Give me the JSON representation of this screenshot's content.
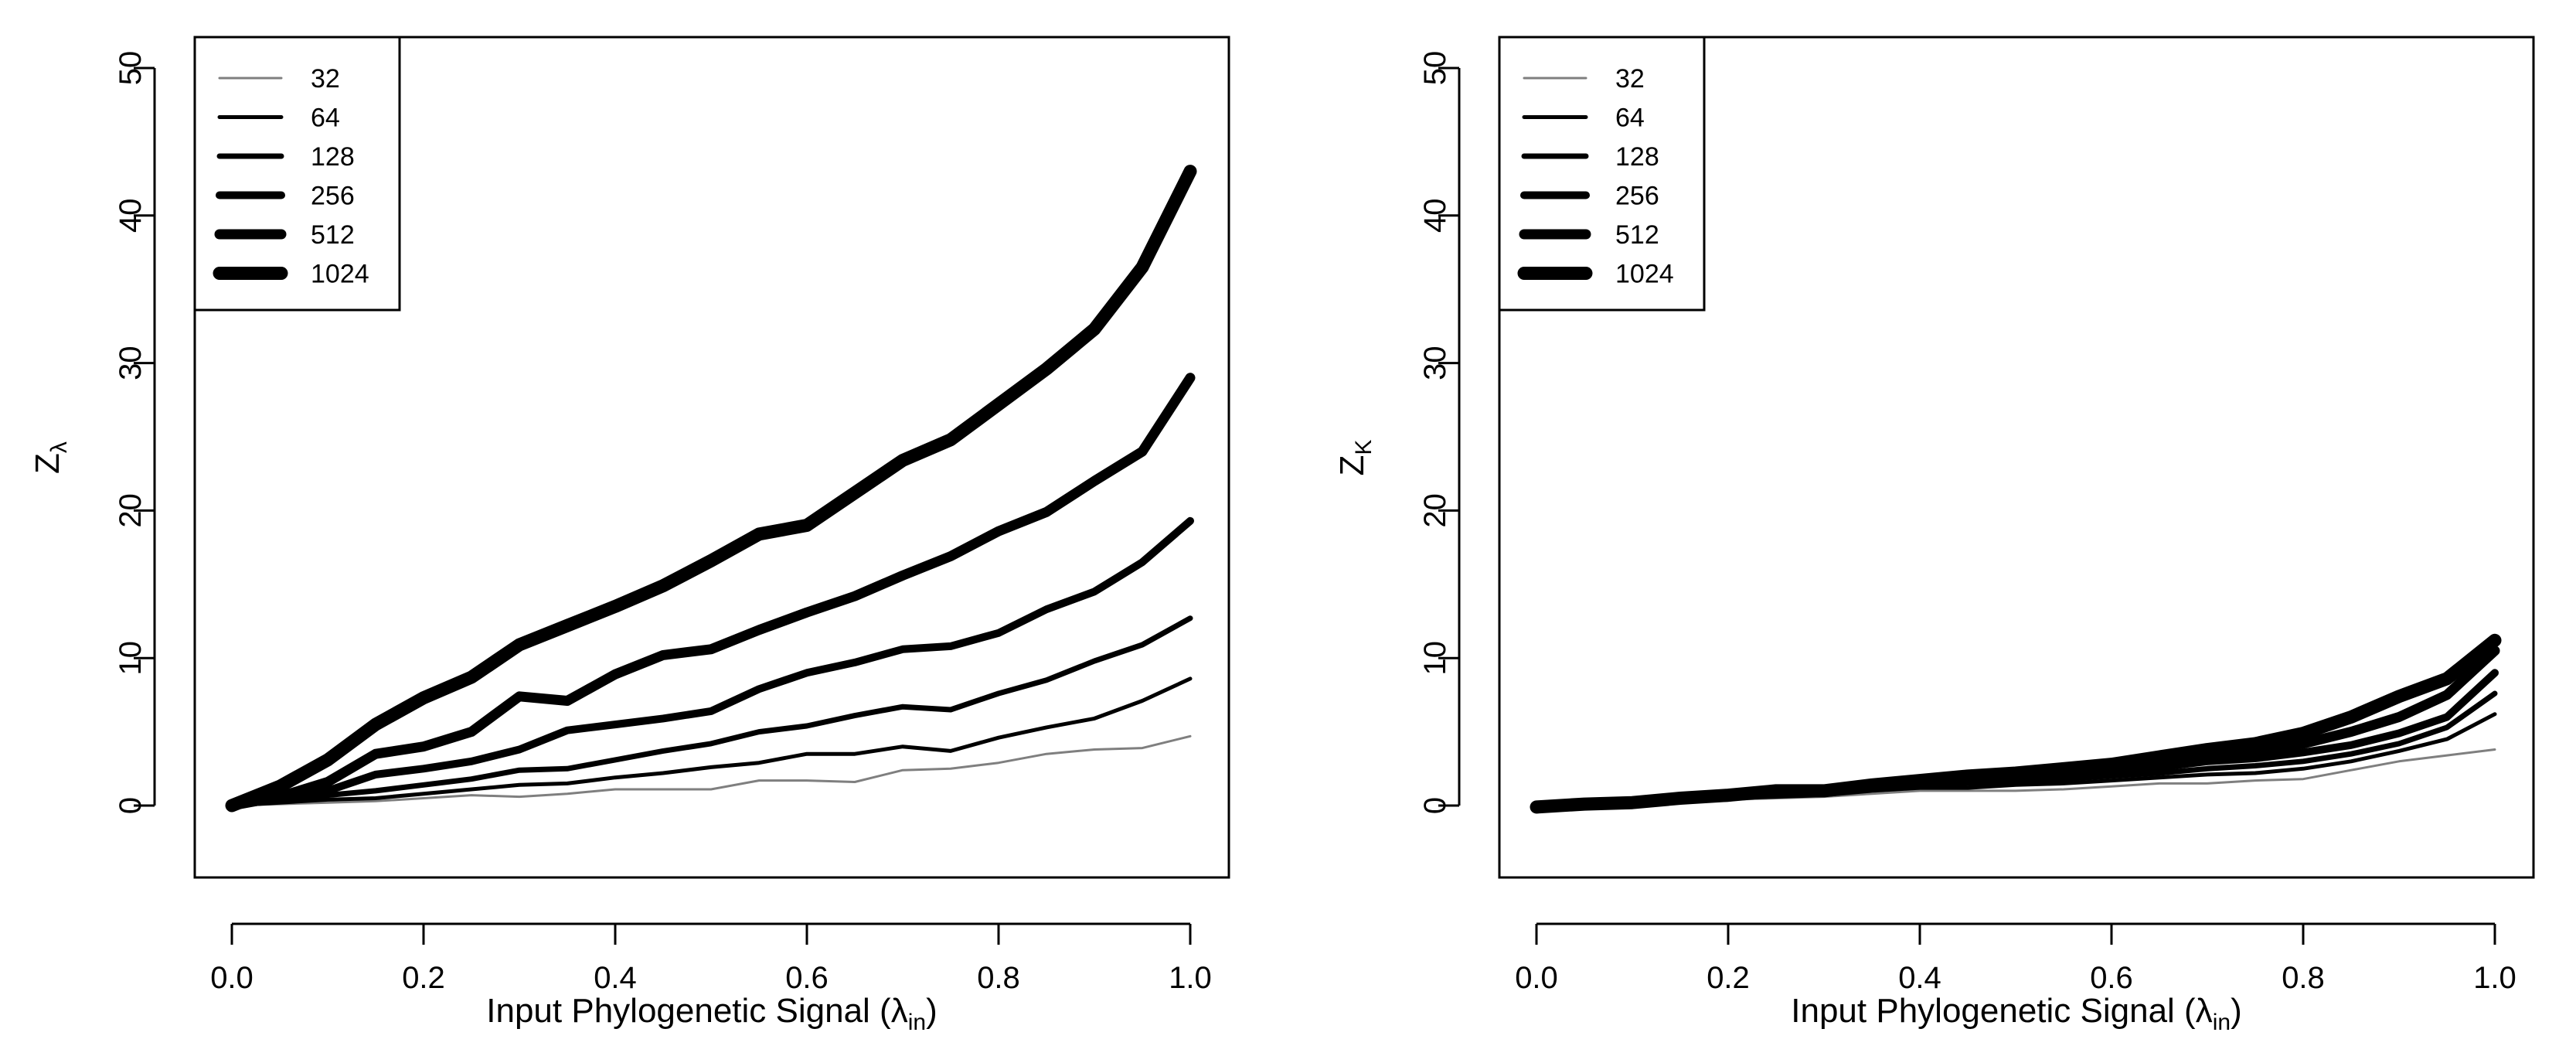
{
  "chart_data": [
    {
      "type": "line",
      "xlabel_main": "Input Phylogenetic Signal (λ",
      "xlabel_sub": "in",
      "xlabel_close": ")",
      "ylabel_main": "Z",
      "ylabel_sub": "λ",
      "xlim": [
        0.0,
        1.0
      ],
      "ylim": [
        -5,
        50
      ],
      "x_ticks": [
        0.0,
        0.2,
        0.4,
        0.6,
        0.8,
        1.0
      ],
      "x_tick_labels": [
        "0.0",
        "0.2",
        "0.4",
        "0.6",
        "0.8",
        "1.0"
      ],
      "y_ticks": [
        0,
        10,
        20,
        30,
        40,
        50
      ],
      "y_tick_labels": [
        "0",
        "10",
        "20",
        "30",
        "40",
        "50"
      ],
      "legend_position": "top-left",
      "grid": false,
      "x": [
        0.0,
        0.05,
        0.1,
        0.15,
        0.2,
        0.25,
        0.3,
        0.35,
        0.4,
        0.45,
        0.5,
        0.55,
        0.6,
        0.65,
        0.7,
        0.75,
        0.8,
        0.85,
        0.9,
        0.95,
        1.0
      ],
      "series": [
        {
          "name": "32",
          "color": "#7f7f7f",
          "values": [
            0.0,
            0.1,
            0.2,
            0.3,
            0.5,
            0.7,
            0.6,
            0.8,
            1.1,
            1.1,
            1.1,
            1.7,
            1.7,
            1.6,
            2.4,
            2.5,
            2.9,
            3.5,
            3.8,
            3.9,
            4.7
          ]
        },
        {
          "name": "64",
          "color": "#000000",
          "values": [
            0.0,
            0.2,
            0.4,
            0.5,
            0.8,
            1.1,
            1.4,
            1.5,
            1.9,
            2.2,
            2.6,
            2.9,
            3.5,
            3.5,
            4.0,
            3.7,
            4.6,
            5.3,
            5.9,
            7.1,
            8.6
          ]
        },
        {
          "name": "128",
          "color": "#000000",
          "values": [
            0.0,
            0.3,
            0.7,
            1.0,
            1.4,
            1.8,
            2.4,
            2.5,
            3.1,
            3.7,
            4.2,
            5.0,
            5.4,
            6.1,
            6.7,
            6.5,
            7.6,
            8.5,
            9.8,
            10.9,
            12.7
          ]
        },
        {
          "name": "256",
          "color": "#000000",
          "values": [
            0.0,
            0.5,
            1.0,
            2.1,
            2.5,
            3.0,
            3.8,
            5.1,
            5.5,
            5.9,
            6.4,
            7.9,
            9.0,
            9.7,
            10.6,
            10.8,
            11.7,
            13.3,
            14.5,
            16.5,
            19.3
          ]
        },
        {
          "name": "512",
          "color": "#000000",
          "values": [
            0.0,
            0.6,
            1.6,
            3.5,
            4.0,
            5.0,
            7.4,
            7.1,
            8.9,
            10.2,
            10.6,
            11.9,
            13.1,
            14.2,
            15.6,
            16.9,
            18.6,
            19.9,
            22.0,
            24.0,
            29.0
          ]
        },
        {
          "name": "1024",
          "color": "#000000",
          "values": [
            0.0,
            1.3,
            3.1,
            5.5,
            7.3,
            8.7,
            10.9,
            12.2,
            13.5,
            14.9,
            16.6,
            18.4,
            19.0,
            21.2,
            23.4,
            24.8,
            27.2,
            29.6,
            32.3,
            36.5,
            43.0
          ]
        }
      ]
    },
    {
      "type": "line",
      "xlabel_main": "Input Phylogenetic Signal (λ",
      "xlabel_sub": "in",
      "xlabel_close": ")",
      "ylabel_main": "Z",
      "ylabel_sub": "K",
      "xlim": [
        0.0,
        1.0
      ],
      "ylim": [
        -5,
        50
      ],
      "x_ticks": [
        0.0,
        0.2,
        0.4,
        0.6,
        0.8,
        1.0
      ],
      "x_tick_labels": [
        "0.0",
        "0.2",
        "0.4",
        "0.6",
        "0.8",
        "1.0"
      ],
      "y_ticks": [
        0,
        10,
        20,
        30,
        40,
        50
      ],
      "y_tick_labels": [
        "0",
        "10",
        "20",
        "30",
        "40",
        "50"
      ],
      "legend_position": "top-left",
      "grid": false,
      "x": [
        0.0,
        0.05,
        0.1,
        0.15,
        0.2,
        0.25,
        0.3,
        0.35,
        0.4,
        0.45,
        0.5,
        0.55,
        0.6,
        0.65,
        0.7,
        0.75,
        0.8,
        0.85,
        0.9,
        0.95,
        1.0
      ],
      "series": [
        {
          "name": "32",
          "color": "#7f7f7f",
          "values": [
            -0.1,
            0.0,
            0.1,
            0.2,
            0.4,
            0.5,
            0.6,
            0.8,
            1.0,
            1.0,
            1.0,
            1.1,
            1.3,
            1.5,
            1.5,
            1.7,
            1.8,
            2.4,
            3.0,
            3.4,
            3.8
          ]
        },
        {
          "name": "64",
          "color": "#000000",
          "values": [
            -0.2,
            -0.1,
            0.0,
            0.3,
            0.5,
            0.6,
            0.7,
            1.0,
            1.2,
            1.2,
            1.4,
            1.5,
            1.7,
            1.9,
            2.1,
            2.2,
            2.5,
            3.0,
            3.7,
            4.5,
            6.2
          ]
        },
        {
          "name": "128",
          "color": "#000000",
          "values": [
            -0.2,
            0.0,
            0.1,
            0.4,
            0.6,
            0.7,
            0.8,
            1.1,
            1.3,
            1.5,
            1.6,
            1.8,
            2.0,
            2.2,
            2.5,
            2.7,
            3.0,
            3.5,
            4.2,
            5.3,
            7.6
          ]
        },
        {
          "name": "256",
          "color": "#000000",
          "values": [
            -0.1,
            0.0,
            0.2,
            0.5,
            0.6,
            0.9,
            0.9,
            1.2,
            1.5,
            1.7,
            1.8,
            2.1,
            2.3,
            2.6,
            3.0,
            3.2,
            3.6,
            4.1,
            4.9,
            6.0,
            9.0
          ]
        },
        {
          "name": "512",
          "color": "#000000",
          "values": [
            -0.2,
            0.1,
            0.2,
            0.5,
            0.6,
            1.0,
            1.0,
            1.3,
            1.6,
            1.9,
            2.0,
            2.3,
            2.6,
            3.0,
            3.4,
            3.7,
            4.2,
            5.0,
            6.0,
            7.5,
            10.5
          ]
        },
        {
          "name": "1024",
          "color": "#000000",
          "values": [
            -0.1,
            0.1,
            0.2,
            0.5,
            0.7,
            1.0,
            1.0,
            1.4,
            1.7,
            2.0,
            2.2,
            2.5,
            2.8,
            3.3,
            3.8,
            4.2,
            4.9,
            6.0,
            7.4,
            8.6,
            11.2
          ]
        }
      ]
    }
  ]
}
